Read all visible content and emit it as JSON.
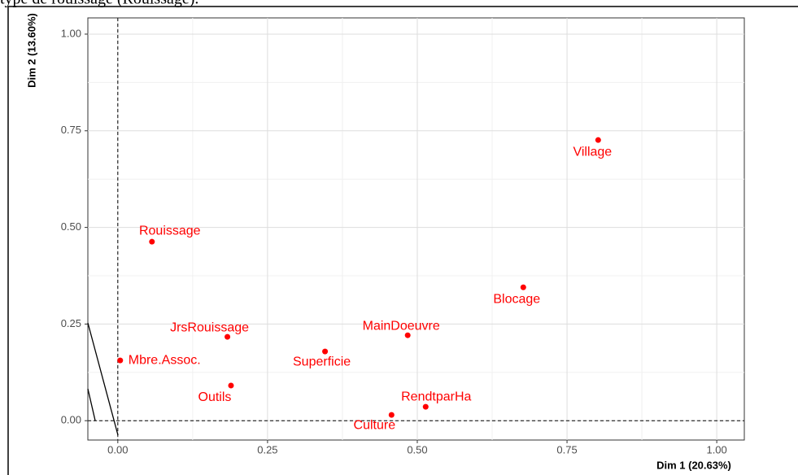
{
  "caption": "type de rouissage (Rouissage).",
  "chart_data": {
    "type": "scatter",
    "x_label": "Dim 1 (20.63%)",
    "y_label": "Dim 2 (13.60%)",
    "color": "#ff0000",
    "grid": true,
    "series": [
      {
        "name": null,
        "color": "#ff0000",
        "labels": [
          "Village",
          "Rouissage",
          "Blocage",
          "JrsRouissage",
          "MainDoeuvre",
          "Superficie",
          "Mbre.Assoc.",
          "Outils",
          "RendtparHa",
          "Culture"
        ],
        "x": [
          0.802,
          0.057,
          0.677,
          0.183,
          0.484,
          0.346,
          0.004,
          0.189,
          0.514,
          0.457
        ],
        "values": [
          0.726,
          0.463,
          0.345,
          0.217,
          0.221,
          0.179,
          0.156,
          0.091,
          0.036,
          0.015
        ]
      }
    ],
    "xlim": [
      -0.05,
      1.046
    ],
    "ylim": [
      -0.05,
      1.042
    ],
    "xticks": [
      {
        "value": 0,
        "label": "0.00"
      },
      {
        "value": 0.25,
        "label": "0.25"
      },
      {
        "value": 0.5,
        "label": "0.50"
      },
      {
        "value": 0.75,
        "label": "0.75"
      },
      {
        "value": 1,
        "label": "1.00"
      }
    ],
    "yticks": [
      {
        "value": 0,
        "label": "0.00"
      },
      {
        "value": 0.25,
        "label": "0.25"
      },
      {
        "value": 0.5,
        "label": "0.50"
      },
      {
        "value": 0.75,
        "label": "0.75"
      },
      {
        "value": 1,
        "label": "1.00"
      }
    ]
  }
}
